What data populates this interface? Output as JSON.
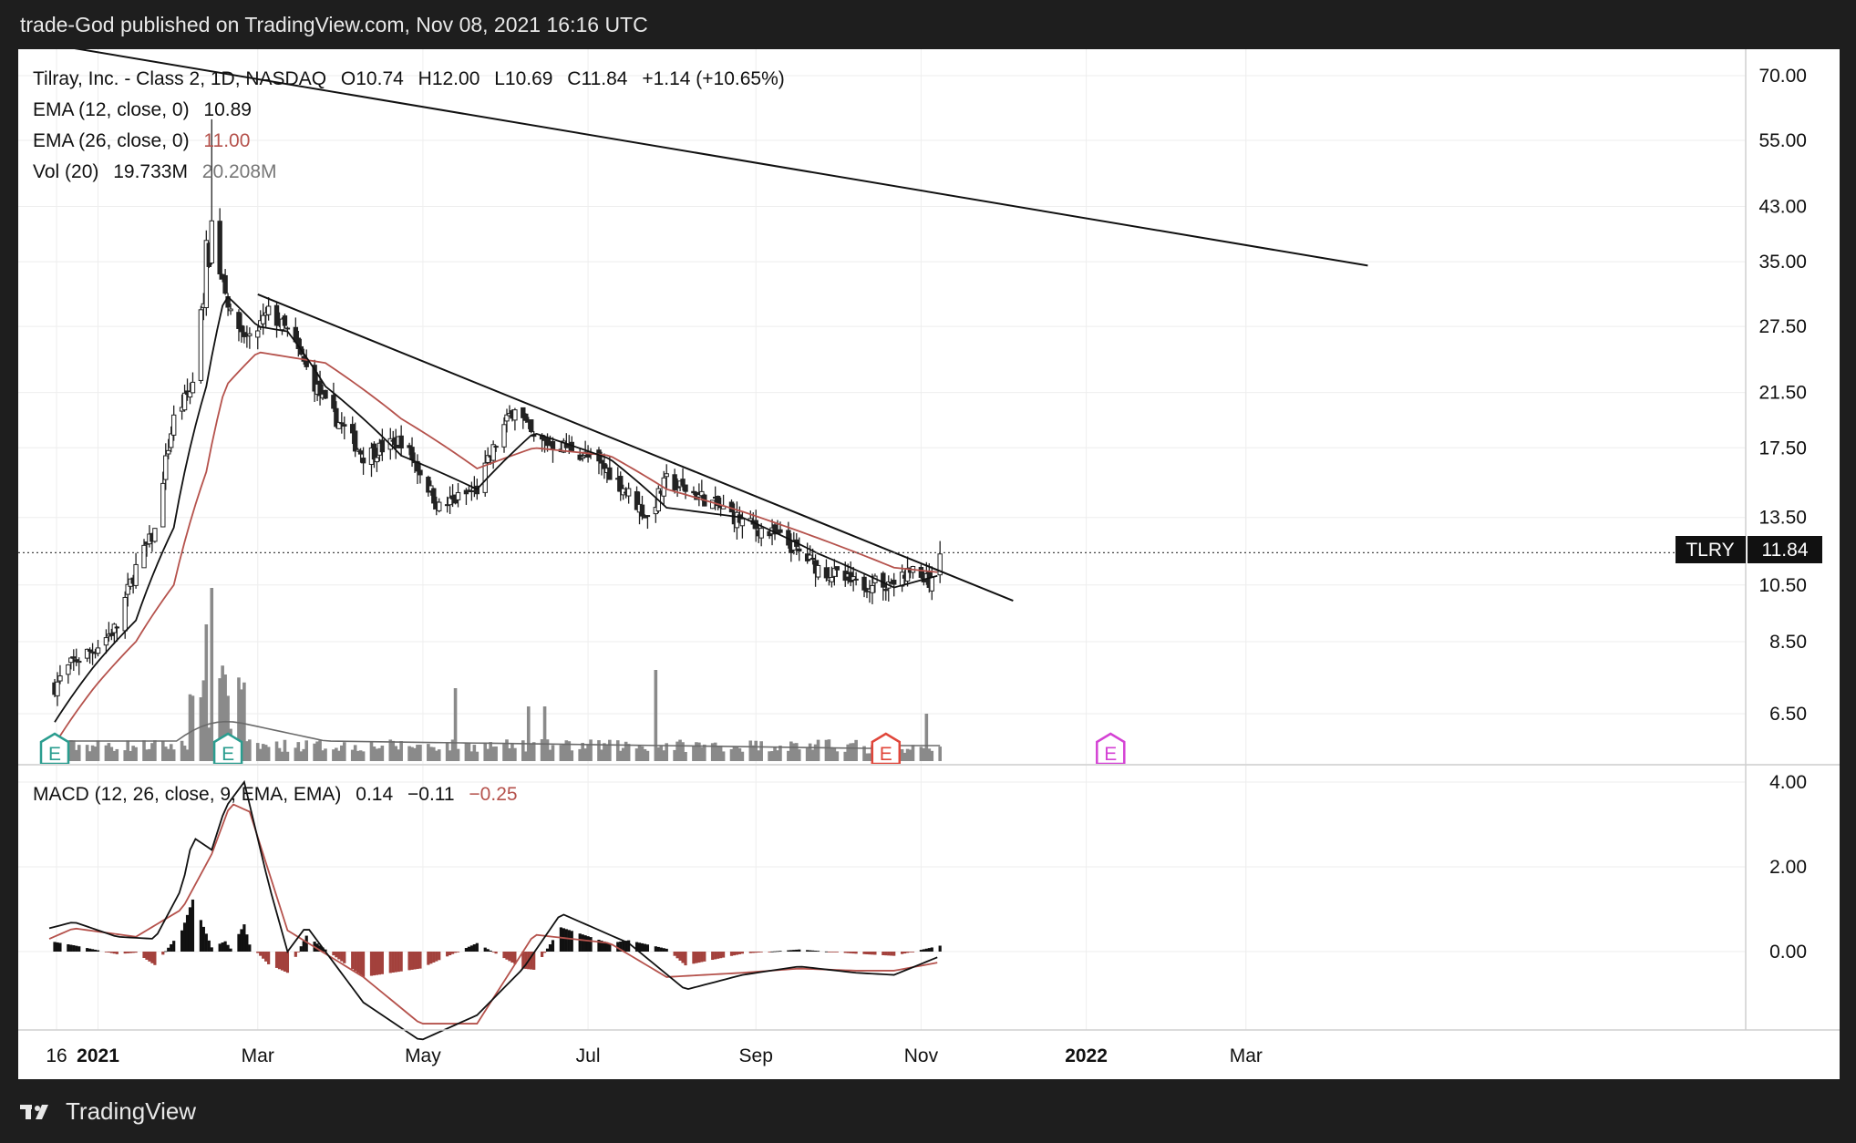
{
  "header": {
    "publisher": "trade-God published on TradingView.com, Nov 08, 2021 16:16 UTC"
  },
  "footer": {
    "brand": "TradingView"
  },
  "legend": {
    "symbol_line": "Tilray, Inc. - Class 2, 1D, NASDAQ",
    "open": "O10.74",
    "high": "H12.00",
    "low": "L10.69",
    "close": "C11.84",
    "change": "+1.14 (+10.65%)",
    "ema12_label": "EMA (12, close, 0)",
    "ema12_value": "10.89",
    "ema26_label": "EMA (26, close, 0)",
    "ema26_value": "11.00",
    "vol_label": "Vol (20)",
    "vol_value": "19.733M",
    "vol_ma_value": "20.208M",
    "macd_label": "MACD (12, 26, close, 9, EMA, EMA)",
    "macd_hist": "0.14",
    "macd_value": "−0.11",
    "macd_signal": "−0.25"
  },
  "price_tag": {
    "symbol": "TLRY",
    "value": "11.84"
  },
  "colors": {
    "up": "#222222",
    "down": "#222222",
    "ema12": "#111111",
    "ema26": "#b5524c",
    "volume": "#8a8a8a",
    "vol_ma": "#6b6b6b",
    "macd_hist_pos": "#111111",
    "macd_hist_neg": "#a3413c",
    "earnings_past": "#2a9d8f",
    "earnings_red": "#e0463a",
    "earnings_future": "#d442d4",
    "grid": "#eeeeee",
    "tag_bg": "#111111"
  },
  "chart_data": {
    "type": "candlestick",
    "symbol": "TLRY",
    "exchange": "NASDAQ",
    "interval": "1D",
    "price_axis": {
      "ticks": [
        "70.00",
        "55.00",
        "43.00",
        "35.00",
        "27.50",
        "21.50",
        "17.50",
        "13.50",
        "10.50",
        "8.50",
        "6.50"
      ],
      "tick_values": [
        70,
        55,
        43,
        35,
        27.5,
        21.5,
        17.5,
        13.5,
        10.5,
        8.5,
        6.5
      ],
      "scale": "log"
    },
    "macd_axis": {
      "ticks": [
        "4.00",
        "2.00",
        "0.00"
      ],
      "tick_values": [
        4,
        2,
        0
      ]
    },
    "time_axis": {
      "ticks": [
        "16",
        "2021",
        "Mar",
        "May",
        "Jul",
        "Sep",
        "Nov",
        "2022",
        "Mar"
      ],
      "bold": [
        false,
        true,
        false,
        false,
        false,
        false,
        false,
        true,
        false
      ]
    },
    "price_path": {
      "dates": [
        "2020-12-16",
        "2020-12-23",
        "2020-12-31",
        "2021-01-08",
        "2021-01-15",
        "2021-01-22",
        "2021-01-29",
        "2021-02-05",
        "2021-02-10",
        "2021-02-12",
        "2021-02-19",
        "2021-02-26",
        "2021-03-05",
        "2021-03-12",
        "2021-03-19",
        "2021-03-26",
        "2021-04-09",
        "2021-04-23",
        "2021-05-07",
        "2021-05-21",
        "2021-06-04",
        "2021-06-11",
        "2021-06-25",
        "2021-07-09",
        "2021-07-23",
        "2021-07-30",
        "2021-08-13",
        "2021-08-27",
        "2021-09-10",
        "2021-09-24",
        "2021-10-08",
        "2021-10-22",
        "2021-10-29",
        "2021-11-05",
        "2021-11-08"
      ],
      "close": [
        7.2,
        7.9,
        8.3,
        9.0,
        11.2,
        12.8,
        19.5,
        22.0,
        35.0,
        40.0,
        28.5,
        26.0,
        29.0,
        27.0,
        23.5,
        20.5,
        17.0,
        18.0,
        14.0,
        15.0,
        20.5,
        18.0,
        17.5,
        16.0,
        13.5,
        15.5,
        14.5,
        13.3,
        12.5,
        11.2,
        10.5,
        10.6,
        11.1,
        10.5,
        11.84
      ]
    },
    "ema12": {
      "dates": [
        "2020-12-16",
        "2020-12-31",
        "2021-01-15",
        "2021-01-29",
        "2021-02-10",
        "2021-02-17",
        "2021-03-01",
        "2021-03-12",
        "2021-03-26",
        "2021-04-23",
        "2021-05-21",
        "2021-06-11",
        "2021-07-09",
        "2021-07-30",
        "2021-08-27",
        "2021-09-24",
        "2021-10-22",
        "2021-11-08"
      ],
      "values": [
        6.3,
        7.8,
        9.2,
        13.0,
        22.0,
        31.0,
        27.5,
        27.0,
        22.0,
        17.0,
        15.0,
        18.5,
        16.8,
        14.0,
        13.5,
        11.8,
        10.4,
        10.89
      ]
    },
    "ema26": {
      "dates": [
        "2020-12-16",
        "2020-12-31",
        "2021-01-15",
        "2021-01-29",
        "2021-02-10",
        "2021-02-17",
        "2021-03-01",
        "2021-03-26",
        "2021-04-23",
        "2021-05-21",
        "2021-06-11",
        "2021-07-09",
        "2021-07-30",
        "2021-08-27",
        "2021-09-24",
        "2021-10-22",
        "2021-11-08"
      ],
      "values": [
        5.8,
        7.2,
        8.5,
        10.5,
        16.0,
        22.0,
        25.0,
        24.0,
        19.5,
        16.2,
        17.5,
        17.0,
        15.0,
        13.8,
        12.5,
        11.2,
        11.0
      ]
    },
    "trendlines": [
      {
        "name": "long-term-resistance",
        "start": {
          "date": "2020-12-12",
          "price": 79.0
        },
        "end": {
          "date": "2022-04-15",
          "price": 34.5
        }
      },
      {
        "name": "intermediate-resistance",
        "start": {
          "date": "2021-03-01",
          "price": 31.0
        },
        "end": {
          "date": "2021-12-05",
          "price": 9.9
        }
      }
    ],
    "last_close": 11.84,
    "earnings_markers": [
      {
        "date": "2020-12-16",
        "kind": "past",
        "label": "E"
      },
      {
        "date": "2021-02-18",
        "kind": "past",
        "label": "E"
      },
      {
        "date": "2021-10-19",
        "kind": "red",
        "label": "E"
      },
      {
        "date": "2022-01-10",
        "kind": "future",
        "label": "E"
      }
    ],
    "macd": {
      "hist": 0.14,
      "macd": -0.11,
      "signal": -0.25,
      "macd_path": {
        "dates": [
          "2020-12-14",
          "2020-12-23",
          "2021-01-08",
          "2021-01-22",
          "2021-02-01",
          "2021-02-05",
          "2021-02-12",
          "2021-02-17",
          "2021-02-24",
          "2021-03-05",
          "2021-03-12",
          "2021-03-19",
          "2021-04-09",
          "2021-04-30",
          "2021-05-21",
          "2021-06-07",
          "2021-06-21",
          "2021-07-16",
          "2021-08-06",
          "2021-08-27",
          "2021-09-17",
          "2021-10-08",
          "2021-10-22",
          "2021-11-08"
        ],
        "values": [
          0.55,
          0.7,
          0.35,
          0.3,
          1.5,
          2.7,
          2.4,
          3.4,
          4.0,
          1.6,
          0.0,
          0.6,
          -1.2,
          -2.1,
          -1.5,
          -0.4,
          0.9,
          0.2,
          -0.9,
          -0.55,
          -0.35,
          -0.5,
          -0.55,
          -0.11
        ]
      },
      "signal_path": {
        "dates": [
          "2020-12-14",
          "2020-12-23",
          "2021-01-15",
          "2021-02-01",
          "2021-02-12",
          "2021-02-19",
          "2021-02-26",
          "2021-03-12",
          "2021-04-09",
          "2021-04-30",
          "2021-05-21",
          "2021-06-11",
          "2021-07-09",
          "2021-07-30",
          "2021-08-27",
          "2021-09-17",
          "2021-10-08",
          "2021-10-22",
          "2021-11-08"
        ],
        "values": [
          0.3,
          0.55,
          0.35,
          1.0,
          2.3,
          3.5,
          3.3,
          0.5,
          -0.6,
          -1.7,
          -1.7,
          0.4,
          0.2,
          -0.6,
          -0.5,
          -0.4,
          -0.45,
          -0.45,
          -0.25
        ]
      }
    },
    "volume_ma_level": "flat, low relative to the late-February spike"
  }
}
